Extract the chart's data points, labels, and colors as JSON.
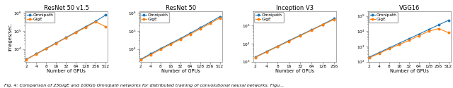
{
  "titles": [
    "ResNet 50 v1.5",
    "ResNet 50",
    "Inception V3",
    "VGG16"
  ],
  "xlabel": "Number of GPUs",
  "ylabel": "Images/sec.",
  "legend_labels": [
    "Omnipath",
    "GigE"
  ],
  "line_colors": [
    "#1f77b4",
    "#ff7f0e"
  ],
  "marker": "o",
  "markersize": 1.8,
  "linewidth": 0.8,
  "plots": [
    {
      "title": "ResNet 50 v1.5",
      "gpus": [
        2,
        4,
        8,
        16,
        32,
        64,
        128,
        256,
        512
      ],
      "omnipath": [
        2700,
        5400,
        10800,
        21600,
        43200,
        86400,
        172800,
        345600,
        750000
      ],
      "gige": [
        2600,
        5200,
        10200,
        20500,
        41000,
        81000,
        160000,
        320000,
        175000
      ],
      "xlim": [
        1.8,
        600
      ],
      "ylim": [
        2000,
        1200000
      ],
      "xticks": [
        2,
        4,
        8,
        16,
        32,
        64,
        128,
        256,
        512
      ]
    },
    {
      "title": "ResNet 50",
      "gpus": [
        2,
        4,
        8,
        16,
        32,
        64,
        128,
        256,
        512
      ],
      "omnipath": [
        2700,
        5400,
        10500,
        20000,
        38000,
        75000,
        150000,
        300000,
        620000
      ],
      "gige": [
        2500,
        4800,
        9500,
        18000,
        34000,
        66000,
        130000,
        260000,
        520000
      ],
      "xlim": [
        1.8,
        600
      ],
      "ylim": [
        2000,
        1200000
      ],
      "xticks": [
        2,
        4,
        8,
        16,
        32,
        64,
        128,
        256,
        512
      ]
    },
    {
      "title": "Inception V3",
      "gpus": [
        2,
        4,
        8,
        16,
        32,
        64,
        128,
        256
      ],
      "omnipath": [
        1800,
        3600,
        7200,
        14500,
        29000,
        57000,
        114000,
        240000
      ],
      "gige": [
        1700,
        3400,
        6800,
        13500,
        27000,
        54000,
        108000,
        215000
      ],
      "xlim": [
        1.8,
        300
      ],
      "ylim": [
        1000,
        600000
      ],
      "xticks": [
        2,
        4,
        8,
        16,
        32,
        64,
        128,
        256
      ]
    },
    {
      "title": "VGG16",
      "gpus": [
        2,
        4,
        8,
        16,
        32,
        64,
        128,
        256,
        512
      ],
      "omnipath": [
        200,
        400,
        800,
        1600,
        3200,
        6400,
        13000,
        26000,
        52000
      ],
      "gige": [
        180,
        350,
        700,
        1300,
        2500,
        5000,
        10000,
        15000,
        8000
      ],
      "xlim": [
        1.8,
        600
      ],
      "ylim": [
        100,
        200000
      ],
      "xticks": [
        2,
        4,
        8,
        16,
        32,
        64,
        128,
        256,
        512
      ]
    }
  ],
  "caption": "Fig. 4: Comparison of 25GigE and 100Gb Omnipath networks for distributed training of convolutional neural networks. Figu...",
  "fig_width": 6.4,
  "fig_height": 1.25,
  "dpi": 100,
  "title_fontsize": 6.0,
  "axis_fontsize": 4.8,
  "tick_fontsize": 4.2,
  "legend_fontsize": 4.2,
  "caption_fontsize": 4.5,
  "background_color": "#ffffff"
}
